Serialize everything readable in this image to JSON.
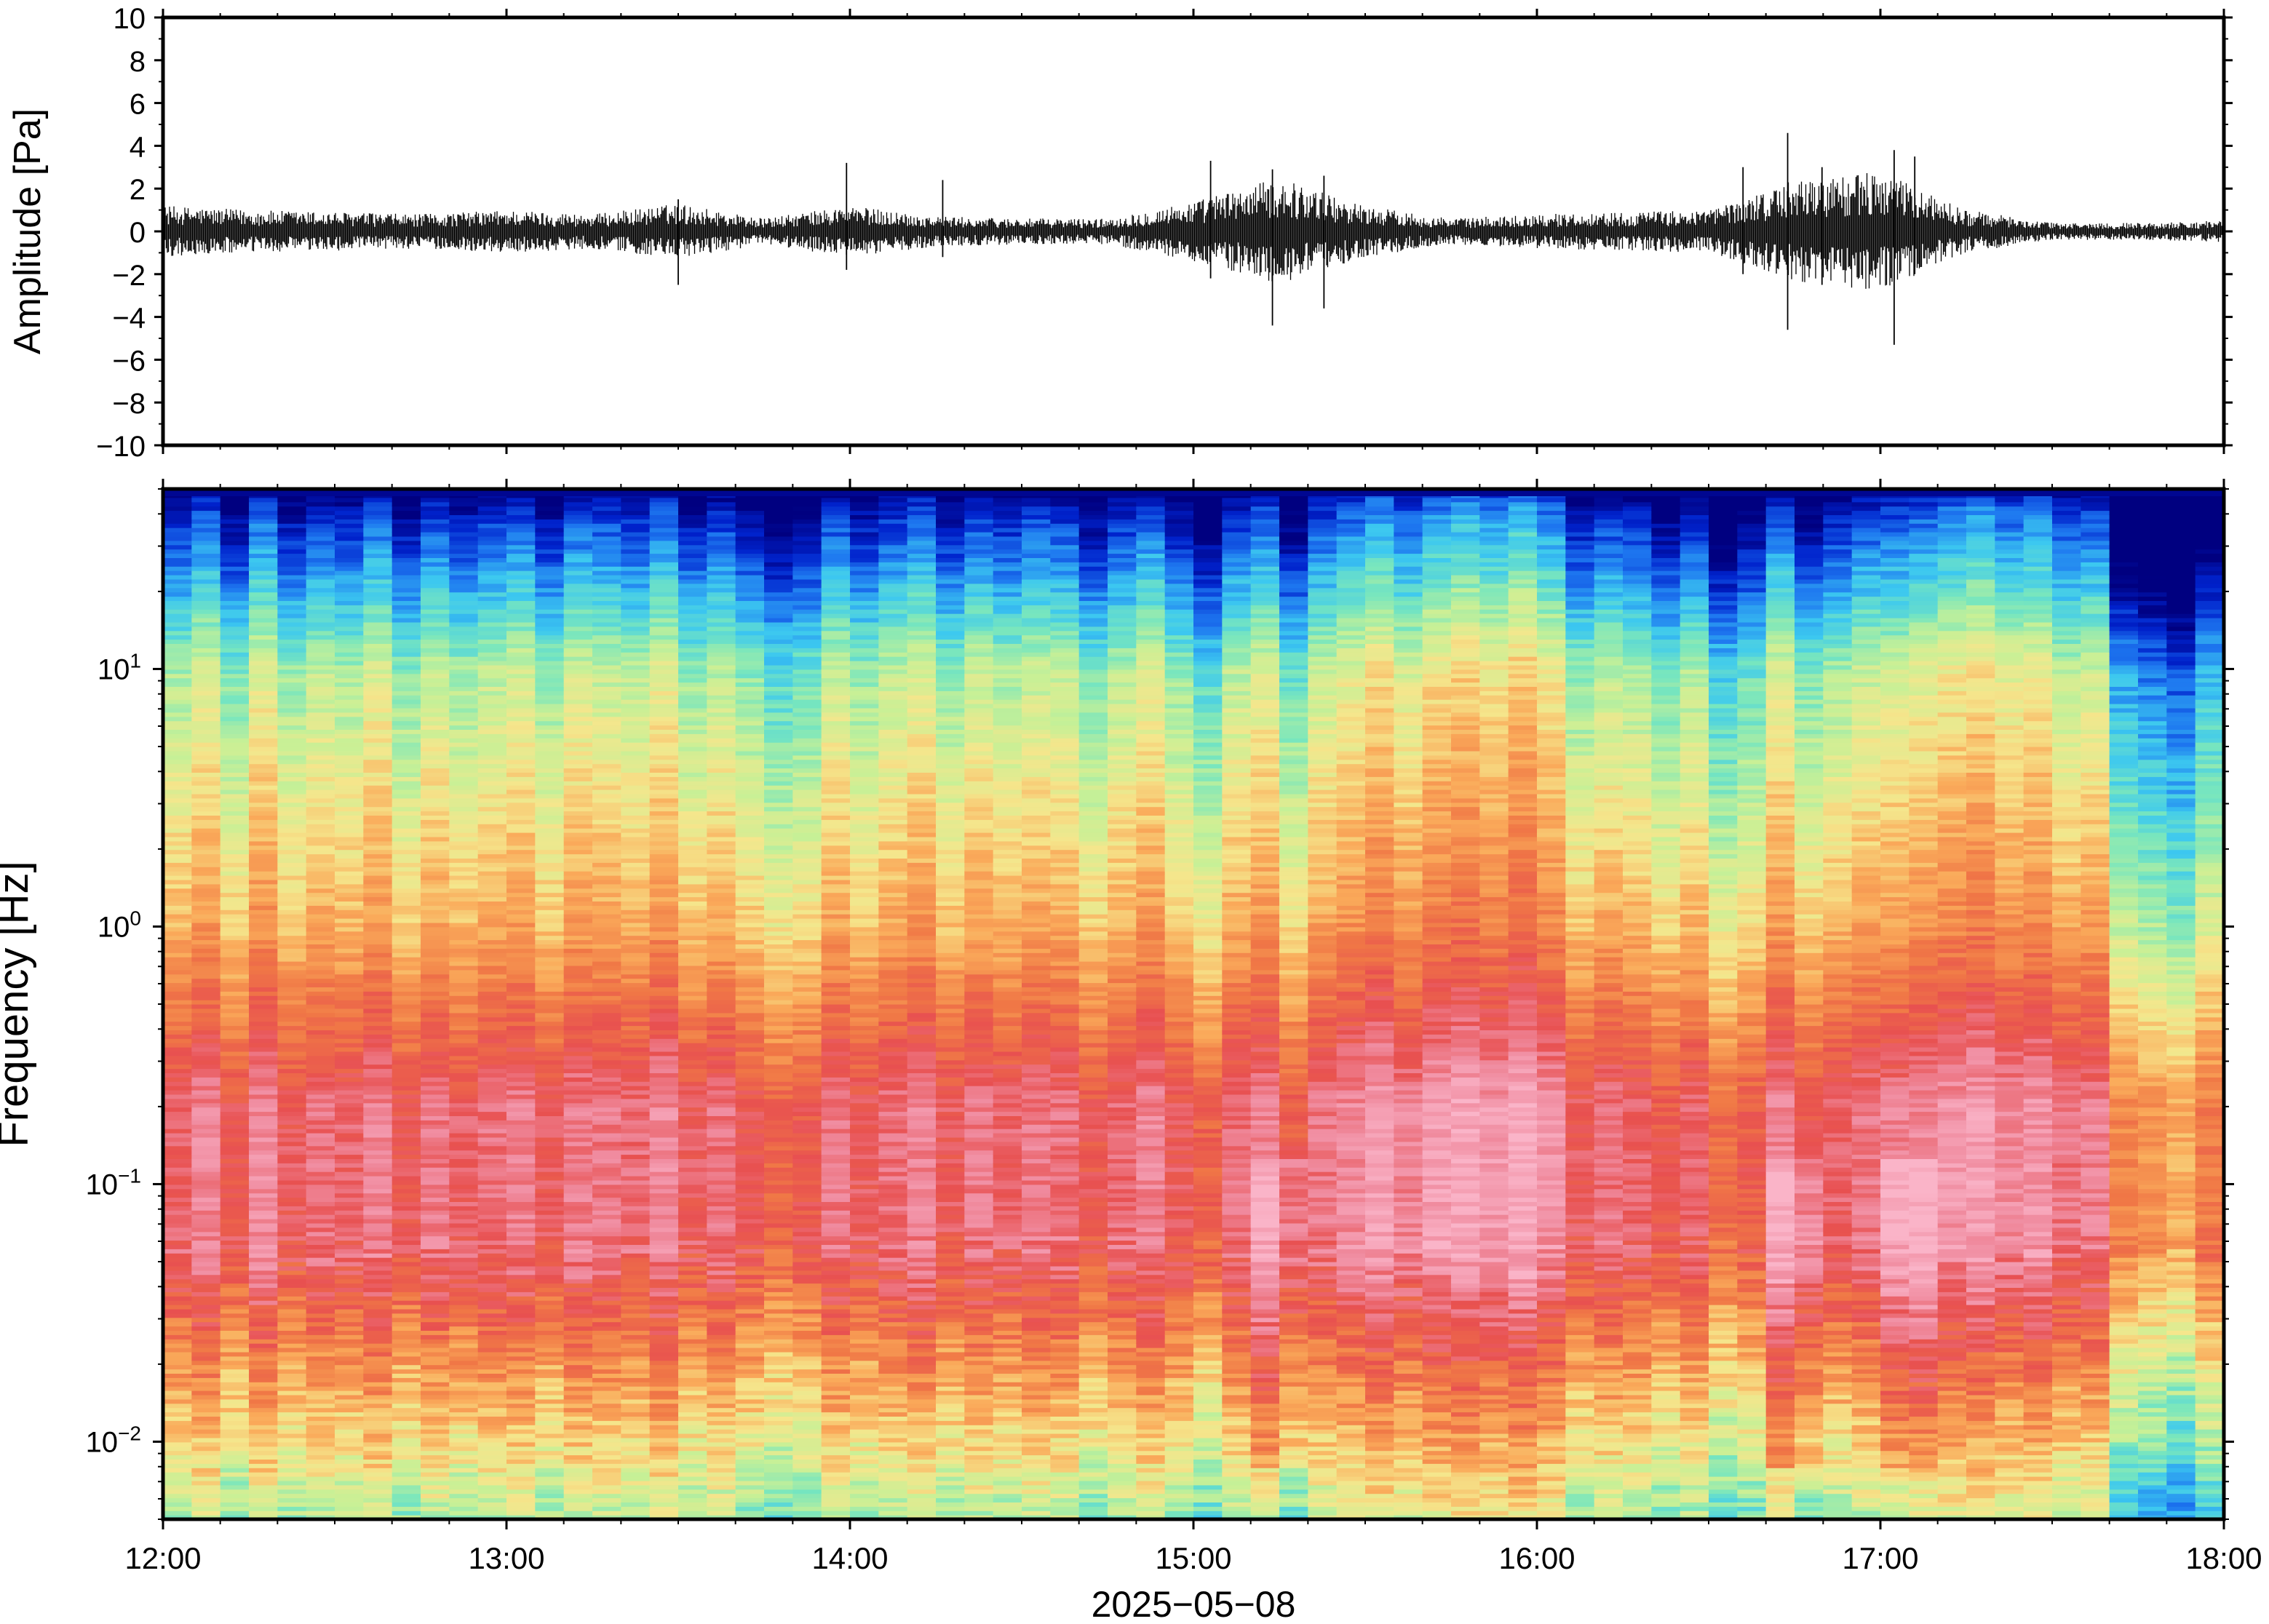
{
  "chart_data": [
    {
      "type": "line",
      "panel": "waveform",
      "ylabel": "Amplitude [Pa]",
      "ylim": [
        -10,
        10
      ],
      "y_ticks": [
        -10,
        -8,
        -6,
        -4,
        -2,
        0,
        2,
        4,
        6,
        8,
        10
      ],
      "y_tick_labels": [
        "−10",
        "−8",
        "−6",
        "−4",
        "−2",
        "0",
        "2",
        "4",
        "6",
        "8",
        "10"
      ],
      "xlim": [
        "12:00",
        "18:00"
      ],
      "series": [
        {
          "color": "#000000",
          "envelope_hours": [
            12.0,
            12.25,
            12.5,
            12.75,
            13.0,
            13.25,
            13.5,
            13.75,
            14.0,
            14.25,
            14.5,
            14.75,
            15.0,
            15.25,
            15.5,
            15.75,
            16.0,
            16.25,
            16.5,
            16.75,
            17.0,
            17.25,
            17.5,
            17.75,
            18.0
          ],
          "envelope_pa": [
            1.2,
            1.0,
            0.9,
            0.8,
            1.0,
            0.8,
            1.3,
            0.6,
            1.2,
            0.7,
            0.6,
            0.6,
            1.4,
            2.5,
            1.2,
            0.6,
            0.8,
            0.9,
            1.0,
            2.4,
            2.8,
            1.0,
            0.4,
            0.4,
            0.5
          ],
          "spikes": [
            {
              "t": 13.5,
              "max": 1.5,
              "min": -2.5
            },
            {
              "t": 13.99,
              "max": 3.2,
              "min": -1.8
            },
            {
              "t": 14.27,
              "max": 2.4,
              "min": -1.2
            },
            {
              "t": 15.05,
              "max": 3.3,
              "min": -2.2
            },
            {
              "t": 15.23,
              "max": 2.9,
              "min": -4.4
            },
            {
              "t": 15.38,
              "max": 2.6,
              "min": -3.6
            },
            {
              "t": 16.6,
              "max": 3.0,
              "min": -2.0
            },
            {
              "t": 16.73,
              "max": 4.6,
              "min": -4.6
            },
            {
              "t": 16.83,
              "max": 3.0,
              "min": -2.5
            },
            {
              "t": 17.04,
              "max": 3.8,
              "min": -5.3
            },
            {
              "t": 17.1,
              "max": 3.5,
              "min": -2.0
            }
          ]
        }
      ]
    },
    {
      "type": "heatmap",
      "panel": "spectrogram",
      "ylabel": "Frequency [Hz]",
      "xlabel": "2025−05−08",
      "y_scale": "log",
      "ylim_hz": [
        0.005,
        50
      ],
      "y_ticks_hz": [
        0.01,
        0.1,
        1,
        10
      ],
      "y_tick_labels": [
        {
          "base": "10",
          "exp": "−2"
        },
        {
          "base": "10",
          "exp": "−1"
        },
        {
          "base": "10",
          "exp": "0"
        },
        {
          "base": "10",
          "exp": "1"
        }
      ],
      "x_ticks": [
        "12:00",
        "13:00",
        "14:00",
        "15:00",
        "16:00",
        "17:00",
        "18:00"
      ],
      "colormap": "spectral",
      "colormap_stops": [
        "#000080",
        "#0022cc",
        "#1e78f0",
        "#3cc8f0",
        "#78e6be",
        "#c8f096",
        "#f5e68c",
        "#faaa5a",
        "#f07846",
        "#e85050",
        "#f08ca0",
        "#fab4c8"
      ],
      "time_columns": 72,
      "column_level_offsets": [
        0.0,
        0.05,
        -0.04,
        0.06,
        -0.02,
        0.02,
        0.0,
        0.05,
        -0.03,
        0.03,
        -0.01,
        0.02,
        0.04,
        -0.02,
        0.04,
        0.03,
        0.01,
        0.06,
        -0.02,
        0.02,
        -0.03,
        -0.08,
        -0.05,
        0.03,
        -0.02,
        0.02,
        0.05,
        -0.02,
        0.03,
        0.0,
        0.03,
        0.02,
        -0.04,
        0.01,
        0.05,
        -0.02,
        -0.08,
        0.02,
        0.05,
        -0.06,
        0.03,
        0.06,
        0.1,
        0.05,
        0.1,
        0.12,
        0.09,
        0.13,
        0.08,
        -0.02,
        0.02,
        0.0,
        -0.05,
        0.0,
        -0.1,
        -0.06,
        0.05,
        -0.04,
        0.0,
        0.03,
        0.04,
        0.06,
        0.08,
        0.1,
        0.06,
        0.08,
        0.02,
        0.04,
        -0.15,
        -0.18,
        -0.22,
        -0.12
      ],
      "low_freq_event_hours": [
        15.25,
        16.75,
        17.08
      ]
    }
  ]
}
